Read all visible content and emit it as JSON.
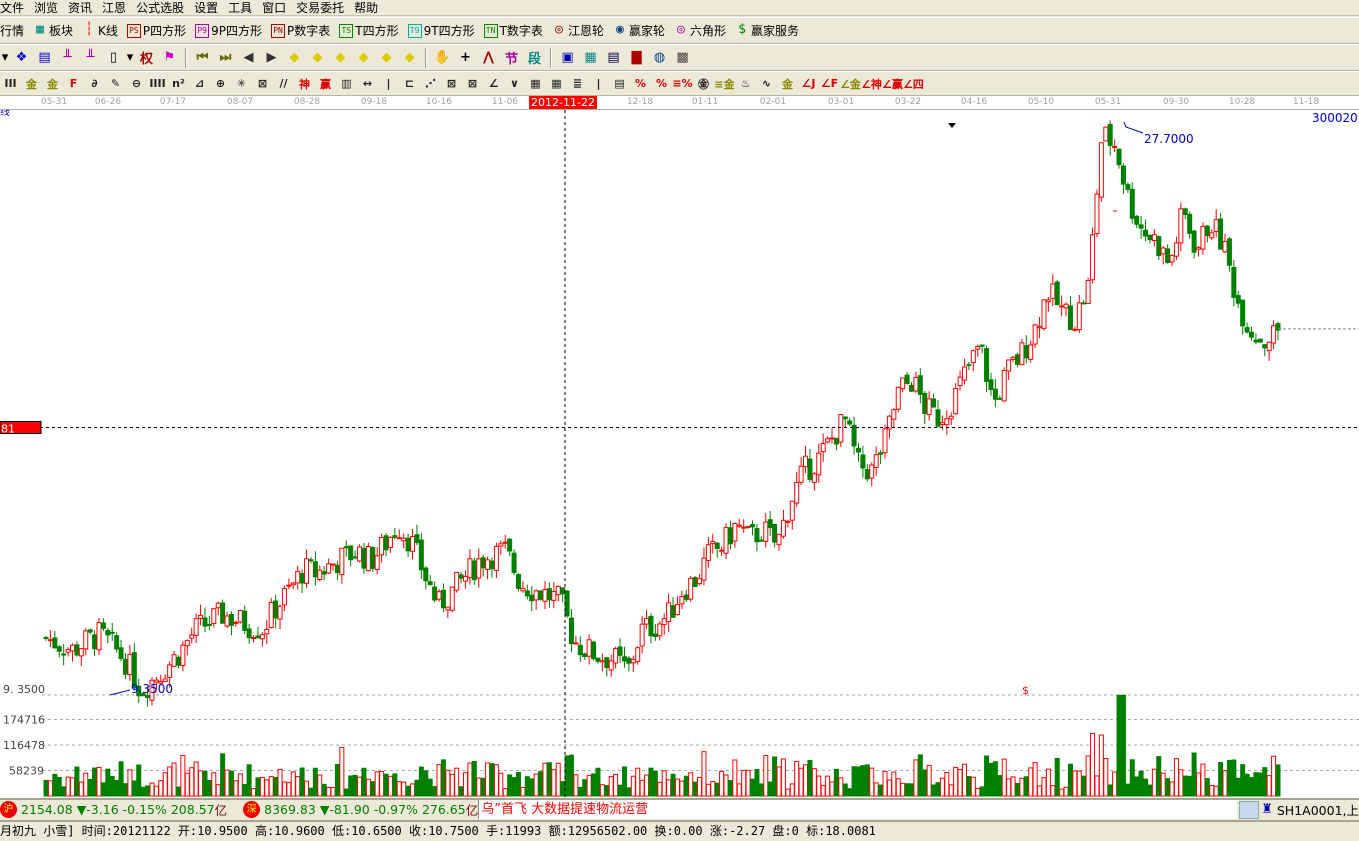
{
  "menu": [
    "文件",
    "浏览",
    "资讯",
    "江恩",
    "公式选股",
    "设置",
    "工具",
    "窗口",
    "交易委托",
    "帮助"
  ],
  "toolbar1": [
    {
      "label": "行情",
      "icon": "quote-icon",
      "glyph": "",
      "color": "#000"
    },
    {
      "label": "板块",
      "icon": "sector-grid-icon",
      "glyph": "▦",
      "color": "#088"
    },
    {
      "label": "K线",
      "icon": "candlestick-icon",
      "glyph": "┆",
      "color": "#d00"
    },
    {
      "label": "P四方形",
      "icon": "ps-icon",
      "glyph": "PS",
      "color": "#a00"
    },
    {
      "label": "9P四方形",
      "icon": "p9-icon",
      "glyph": "P9",
      "color": "#a0a"
    },
    {
      "label": "P数字表",
      "icon": "pn-icon",
      "glyph": "PN",
      "color": "#a00"
    },
    {
      "label": "T四方形",
      "icon": "ts-icon",
      "glyph": "TS",
      "color": "#080"
    },
    {
      "label": "9T四方形",
      "icon": "t9-icon",
      "glyph": "T9",
      "color": "#0aa"
    },
    {
      "label": "T数字表",
      "icon": "tn-icon",
      "glyph": "TN",
      "color": "#080"
    },
    {
      "label": "江恩轮",
      "icon": "gann-wheel-icon",
      "glyph": "◎",
      "color": "#800"
    },
    {
      "label": "赢家轮",
      "icon": "winner-wheel-icon",
      "glyph": "◉",
      "color": "#048"
    },
    {
      "label": "六角形",
      "icon": "hexagon-icon",
      "glyph": "◎",
      "color": "#a0a"
    },
    {
      "label": "赢家服务",
      "icon": "dollar-icon",
      "glyph": "$",
      "color": "#080"
    }
  ],
  "toolbar2": [
    {
      "icon": "dropdown-arrow-icon",
      "glyph": "▾",
      "color": "#000"
    },
    {
      "icon": "period-icon",
      "glyph": "❖",
      "color": "#00c"
    },
    {
      "icon": "notepad-icon",
      "glyph": "▤",
      "color": "#00c"
    },
    {
      "icon": "period-3-icon",
      "glyph": "╨",
      "color": "#a0a"
    },
    {
      "icon": "period-9-icon",
      "glyph": "╨",
      "color": "#a0a"
    },
    {
      "icon": "candle-type-icon",
      "glyph": "▯",
      "color": "#000"
    },
    {
      "icon": "dropdown-arrow-icon",
      "glyph": "▾",
      "color": "#000"
    },
    {
      "icon": "rights-icon",
      "glyph": "权",
      "color": "#a00"
    },
    {
      "icon": "flag-icon",
      "glyph": "⚑",
      "color": "#c0c"
    },
    {
      "icon": "first-icon",
      "glyph": "⏮",
      "color": "#660"
    },
    {
      "icon": "last-icon",
      "glyph": "⏭",
      "color": "#660"
    },
    {
      "icon": "prev-icon",
      "glyph": "◀",
      "color": "#333"
    },
    {
      "icon": "next-icon",
      "glyph": "▶",
      "color": "#333"
    },
    {
      "icon": "move-left-icon",
      "glyph": "◆",
      "color": "#dc0"
    },
    {
      "icon": "move-right-icon",
      "glyph": "◆",
      "color": "#dc0"
    },
    {
      "icon": "zoom-h-icon",
      "glyph": "◆",
      "color": "#dc0"
    },
    {
      "icon": "shrink-h-icon",
      "glyph": "◆",
      "color": "#dc0"
    },
    {
      "icon": "zoom-v-icon",
      "glyph": "◆",
      "color": "#dc0"
    },
    {
      "icon": "shrink-v-icon",
      "glyph": "◆",
      "color": "#dc0"
    },
    {
      "icon": "hand-icon",
      "glyph": "✋",
      "color": "#000"
    },
    {
      "icon": "crosshair-icon",
      "glyph": "+",
      "color": "#000"
    },
    {
      "icon": "line-tool-icon",
      "glyph": "⋀",
      "color": "#a00"
    },
    {
      "icon": "node-icon",
      "glyph": "节",
      "color": "#a0a"
    },
    {
      "icon": "segment-icon",
      "glyph": "段",
      "color": "#088"
    },
    {
      "icon": "calendar-icon",
      "glyph": "▣",
      "color": "#00a"
    },
    {
      "icon": "calculator-icon",
      "glyph": "▦",
      "color": "#088"
    },
    {
      "icon": "notes-icon",
      "glyph": "▤",
      "color": "#004"
    },
    {
      "icon": "save-icon",
      "glyph": "▇",
      "color": "#a00"
    },
    {
      "icon": "network-icon",
      "glyph": "◍",
      "color": "#048"
    },
    {
      "icon": "trade-icon",
      "glyph": "▩",
      "color": "#444"
    }
  ],
  "toolbar3": [
    "III",
    "金",
    "金",
    "F",
    "∂",
    "✎",
    "⊖",
    "IIII",
    "n²",
    "⊿",
    "⊕",
    "✳",
    "⊠",
    "//",
    "神",
    "赢",
    "▥",
    "↔",
    "|",
    "⊏",
    "⋰",
    "⊠",
    "⊠",
    "∠",
    "∨",
    "▦",
    "▦",
    "≣",
    "|",
    "▤",
    "%",
    "%",
    "≡%",
    "㊎",
    "≡金",
    "♨",
    "∿",
    "金",
    "∠J",
    "∠F",
    "∠金",
    "∠神",
    "∠赢",
    "∠四"
  ],
  "axis": {
    "dates": [
      "05-31",
      "06-26",
      "07-17",
      "08-07",
      "08-28",
      "09-18",
      "10-16",
      "11-06",
      "2012-11-22",
      "12-18",
      "01-11",
      "02-01",
      "03-01",
      "03-22",
      "04-16",
      "05-10",
      "05-31",
      "09-30",
      "10-28",
      "11-18"
    ],
    "current": "2012-11-22"
  },
  "chart": {
    "corner_label": "线",
    "code": "300020",
    "crosshair_price_label": "81",
    "low_label": "9.3500",
    "low_axis_label": "9. 3500",
    "high_label": "27.7000",
    "marker": "$",
    "volume_ticks": [
      "174716",
      "116478",
      "58239"
    ],
    "colors": {
      "up": "#ff0000",
      "down": "#008000",
      "annotation": "#0000ff"
    }
  },
  "chart_data": {
    "type": "candlestick",
    "price_low": 9.35,
    "price_high": 27.7,
    "crosshair_price": 18.0081,
    "last_price": 21.2,
    "closes": [
      11.2,
      11.0,
      10.8,
      11.1,
      11.3,
      10.9,
      10.4,
      9.5,
      9.9,
      10.3,
      10.8,
      11.45,
      11.7,
      11.95,
      11.8,
      11.6,
      11.5,
      12.2,
      12.75,
      13.4,
      13.3,
      13.55,
      13.8,
      14.0,
      13.7,
      14.2,
      14.85,
      14.3,
      13.2,
      12.25,
      12.7,
      13.2,
      13.7,
      13.9,
      14.0,
      13.0,
      12.75,
      12.6,
      12.4,
      11.1,
      10.8,
      10.6,
      10.5,
      10.15,
      11.45,
      11.6,
      11.95,
      12.75,
      13.1,
      13.9,
      14.2,
      14.85,
      14.4,
      14.7,
      14.2,
      15.65,
      16.6,
      16.95,
      17.6,
      18.25,
      16.8,
      16.6,
      17.6,
      19.2,
      19.55,
      18.6,
      18.3,
      18.9,
      19.85,
      20.65,
      18.75,
      19.8,
      20.35,
      21.15,
      22.45,
      21.8,
      21.5,
      22.6,
      27.5,
      27.15,
      25.35,
      24.4,
      24.05,
      23.25,
      25.0,
      23.75,
      24.7,
      23.9,
      22.1,
      21.15,
      20.8,
      21.15
    ],
    "volume_axis": [
      58239,
      116478,
      174716
    ]
  },
  "status": {
    "sh": {
      "badge": "沪",
      "value": "2154.08",
      "change": "▼-3.16",
      "pct": "-0.15%",
      "amount": "208.57",
      "unit": "亿"
    },
    "sz": {
      "badge": "深",
      "value": "8369.83",
      "change": "▼-81.90",
      "pct": "-0.97%",
      "amount": "276.65",
      "unit": "亿"
    },
    "ticker": "乌”首飞 大数据提速物流运营",
    "server": "SH1A0001,上"
  },
  "info": "月初九 小雪] 时间:20121122 开:10.9500 高:10.9600 低:10.6500 收:10.7500 手:11993 额:12956502.00 换:0.00 涨:-2.27 盘:0 标:18.0081"
}
